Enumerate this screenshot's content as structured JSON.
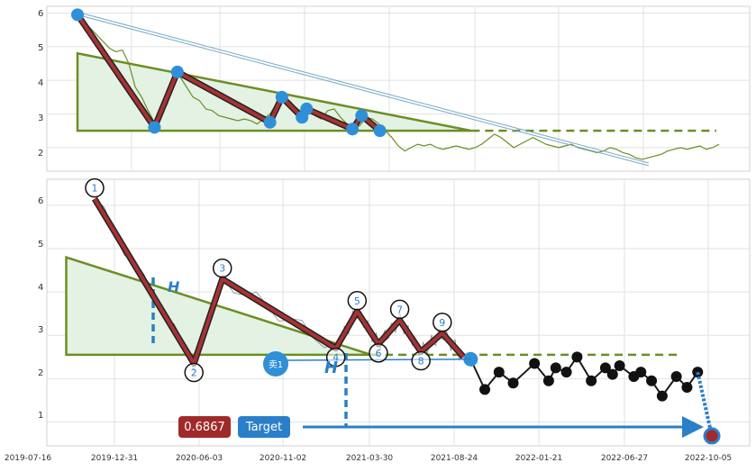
{
  "chart_data": [
    {
      "type": "line",
      "panel": "top",
      "ylim": [
        1.3,
        6.2
      ],
      "y_ticks": [
        "6",
        "5",
        "4",
        "3",
        "2"
      ],
      "grid": true,
      "series": [
        {
          "values": [
            [
              0.0,
              5.95
            ],
            [
              0.7,
              5.75
            ],
            [
              1.4,
              5.55
            ],
            [
              2.1,
              5.35
            ],
            [
              2.8,
              5.15
            ],
            [
              3.5,
              4.95
            ],
            [
              4.2,
              4.85
            ],
            [
              4.9,
              4.9
            ],
            [
              5.6,
              4.5
            ],
            [
              6.3,
              3.8
            ],
            [
              7.0,
              3.5
            ],
            [
              7.7,
              3.1
            ],
            [
              8.4,
              2.75
            ],
            [
              9.1,
              2.95
            ],
            [
              9.8,
              3.3
            ],
            [
              10.3,
              3.7
            ],
            [
              10.6,
              4.0
            ],
            [
              10.9,
              4.25
            ],
            [
              11.2,
              4.1
            ],
            [
              11.9,
              3.8
            ],
            [
              12.6,
              3.5
            ],
            [
              13.3,
              3.4
            ],
            [
              14.0,
              3.15
            ],
            [
              14.7,
              3.1
            ],
            [
              15.4,
              2.95
            ],
            [
              16.1,
              2.9
            ],
            [
              16.8,
              2.85
            ],
            [
              17.5,
              2.8
            ],
            [
              18.2,
              2.85
            ],
            [
              18.9,
              2.8
            ],
            [
              19.6,
              2.7
            ],
            [
              20.3,
              2.85
            ],
            [
              21.0,
              3.0
            ],
            [
              21.7,
              3.3
            ],
            [
              22.4,
              3.5
            ],
            [
              23.1,
              3.4
            ],
            [
              23.8,
              3.2
            ],
            [
              24.5,
              3.05
            ],
            [
              25.2,
              3.15
            ],
            [
              25.9,
              2.95
            ],
            [
              26.6,
              2.85
            ],
            [
              27.3,
              3.1
            ],
            [
              28.0,
              3.15
            ],
            [
              28.7,
              2.9
            ],
            [
              29.4,
              2.7
            ],
            [
              30.1,
              2.55
            ],
            [
              30.8,
              2.65
            ],
            [
              31.5,
              2.9
            ],
            [
              32.2,
              2.85
            ],
            [
              32.9,
              2.7
            ],
            [
              33.6,
              2.5
            ],
            [
              34.3,
              2.3
            ],
            [
              35.0,
              2.05
            ],
            [
              35.7,
              1.9
            ],
            [
              36.4,
              2.0
            ],
            [
              37.1,
              2.1
            ],
            [
              37.8,
              2.05
            ],
            [
              38.5,
              2.1
            ],
            [
              39.2,
              2.0
            ],
            [
              39.9,
              1.95
            ],
            [
              40.6,
              2.0
            ],
            [
              41.3,
              2.05
            ],
            [
              42.0,
              2.0
            ],
            [
              42.7,
              1.95
            ],
            [
              43.4,
              2.0
            ],
            [
              44.1,
              2.1
            ],
            [
              44.8,
              2.25
            ],
            [
              45.5,
              2.4
            ],
            [
              46.2,
              2.3
            ],
            [
              46.9,
              2.15
            ],
            [
              47.6,
              2.0
            ],
            [
              48.3,
              2.1
            ],
            [
              49.0,
              2.2
            ],
            [
              49.7,
              2.3
            ],
            [
              50.4,
              2.2
            ],
            [
              51.1,
              2.1
            ],
            [
              51.8,
              2.05
            ],
            [
              52.5,
              2.0
            ],
            [
              53.2,
              2.05
            ],
            [
              53.9,
              2.1
            ],
            [
              54.6,
              2.0
            ],
            [
              55.3,
              1.95
            ],
            [
              56.0,
              1.9
            ],
            [
              56.7,
              1.85
            ],
            [
              57.4,
              1.9
            ],
            [
              58.1,
              2.0
            ],
            [
              58.8,
              1.95
            ],
            [
              59.5,
              1.85
            ],
            [
              60.2,
              1.8
            ],
            [
              60.9,
              1.7
            ],
            [
              61.6,
              1.65
            ],
            [
              62.3,
              1.7
            ],
            [
              63.0,
              1.75
            ],
            [
              63.7,
              1.8
            ],
            [
              64.4,
              1.9
            ],
            [
              65.1,
              1.95
            ],
            [
              65.8,
              2.0
            ],
            [
              66.5,
              1.95
            ],
            [
              67.2,
              2.0
            ],
            [
              67.9,
              2.05
            ],
            [
              68.6,
              1.95
            ],
            [
              69.3,
              2.0
            ],
            [
              70.0,
              2.1
            ]
          ]
        }
      ],
      "zigzag_points": [
        [
          0,
          5.95
        ],
        [
          8.4,
          2.6
        ],
        [
          10.9,
          4.25
        ],
        [
          21.0,
          2.75
        ],
        [
          22.3,
          3.5
        ],
        [
          24.5,
          2.9
        ],
        [
          25.0,
          3.15
        ],
        [
          30.0,
          2.55
        ],
        [
          31.0,
          2.95
        ],
        [
          33.0,
          2.5
        ]
      ],
      "triangle": {
        "apex": [
          0,
          4.8
        ],
        "base_start": [
          0,
          2.5
        ],
        "base_end": [
          43,
          2.5
        ]
      },
      "projection_y": 2.5
    },
    {
      "type": "line",
      "panel": "bottom",
      "ylim": [
        0.45,
        6.6
      ],
      "y_ticks": [
        "6",
        "5",
        "4",
        "3",
        "2",
        "1"
      ],
      "x_ticks": [
        "2019-07-16",
        "2019-12-31",
        "2020-06-03",
        "2020-11-02",
        "2021-03-30",
        "2021-08-24",
        "2022-01-21",
        "2022-06-27",
        "2022-10-05"
      ],
      "grid": true,
      "zigzag_labels": [
        "1",
        "2",
        "3",
        "4",
        "5",
        "6",
        "7",
        "8",
        "9"
      ],
      "zigzag_points": [
        [
          14,
          6.15
        ],
        [
          28,
          2.35
        ],
        [
          32,
          4.3
        ],
        [
          48,
          2.7
        ],
        [
          51,
          3.55
        ],
        [
          54,
          2.8
        ],
        [
          57,
          3.35
        ],
        [
          60,
          2.62
        ],
        [
          63,
          3.05
        ],
        [
          66,
          2.5
        ]
      ],
      "forecast_points": [
        [
          67,
          2.45
        ],
        [
          69,
          1.75
        ],
        [
          71,
          2.15
        ],
        [
          73,
          1.9
        ],
        [
          76,
          2.35
        ],
        [
          78,
          1.95
        ],
        [
          79,
          2.25
        ],
        [
          80.5,
          2.15
        ],
        [
          82,
          2.5
        ],
        [
          84,
          1.95
        ],
        [
          86,
          2.25
        ],
        [
          87,
          2.1
        ],
        [
          88,
          2.3
        ],
        [
          90,
          2.05
        ],
        [
          91,
          2.15
        ],
        [
          92.5,
          1.95
        ],
        [
          94,
          1.6
        ],
        [
          96,
          2.05
        ],
        [
          97.5,
          1.8
        ],
        [
          99,
          2.15
        ]
      ],
      "triangle": {
        "apex": [
          10,
          4.8
        ],
        "base_start": [
          10,
          2.55
        ],
        "base_end": [
          53,
          2.55
        ]
      },
      "projection_y": 2.55,
      "sell_marker": {
        "label": "卖1",
        "at": [
          68,
          2.45
        ]
      },
      "h_label": "H",
      "measure_label": "H",
      "target_value_label": "0.6867",
      "target_button_label": "Target",
      "target_point": [
        101,
        0.68
      ]
    }
  ],
  "colors": {
    "price_top": "#6b8e23",
    "price_bottom": "#4a5a6a",
    "triangle": "#6b8e23",
    "triangle_fill": "#e3f2e3",
    "zigzag_outer": "#222222",
    "zigzag_inner": "#a83232",
    "marker_blue": "#2f8fd8",
    "target_red": "#a02a2a",
    "target_blue": "#2a7fc9"
  }
}
